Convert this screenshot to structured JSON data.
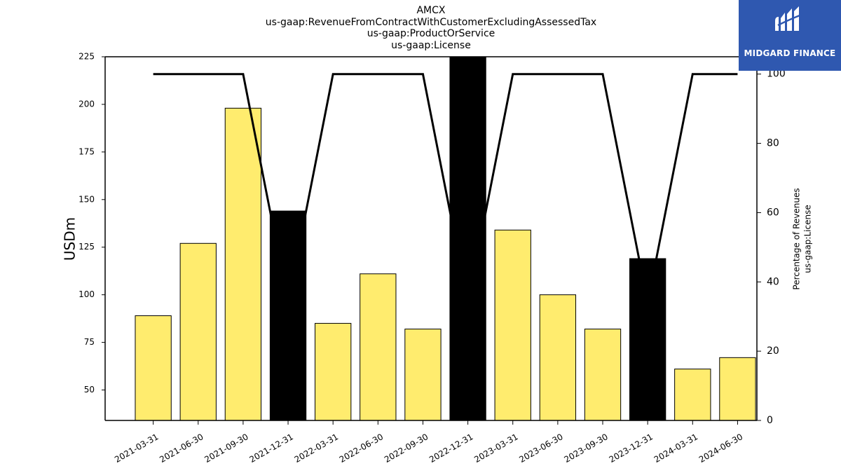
{
  "title_lines": [
    "AMCX",
    "us-gaap:RevenueFromContractWithCustomerExcludingAssessedTax",
    "us-gaap:ProductOrService",
    "us-gaap:License"
  ],
  "logo": {
    "text": "MIDGARD FINANCE",
    "background": "#2f58b0",
    "icon": "midgard-logo-icon"
  },
  "colors": {
    "bar_default": "#ffec6e",
    "bar_highlight": "#000000",
    "line": "#000000"
  },
  "chart_data": {
    "type": "bar",
    "categories": [
      "2021-03-31",
      "2021-06-30",
      "2021-09-30",
      "2021-12-31",
      "2022-03-31",
      "2022-06-30",
      "2022-09-30",
      "2022-12-31",
      "2023-03-31",
      "2023-06-30",
      "2023-09-30",
      "2023-12-31",
      "2024-03-31",
      "2024-06-30"
    ],
    "values": [
      89,
      127,
      198,
      144,
      85,
      111,
      82,
      226,
      134,
      100,
      82,
      119,
      61,
      67
    ],
    "highlighted": [
      false,
      false,
      false,
      true,
      false,
      false,
      false,
      true,
      false,
      false,
      false,
      true,
      false,
      false
    ],
    "ylim": [
      34,
      225
    ],
    "yticks": [
      50,
      75,
      100,
      125,
      150,
      175,
      200,
      225
    ],
    "ylabel": "USDm",
    "secondary": {
      "type": "line",
      "values": [
        100,
        100,
        100,
        34,
        100,
        100,
        100,
        34,
        100,
        100,
        100,
        34,
        100,
        100
      ],
      "ylim": [
        0,
        105
      ],
      "yticks": [
        0,
        20,
        40,
        60,
        80,
        100
      ],
      "ylabel_lines": [
        "Percentage of Revenues",
        "us-gaap:License"
      ]
    }
  }
}
